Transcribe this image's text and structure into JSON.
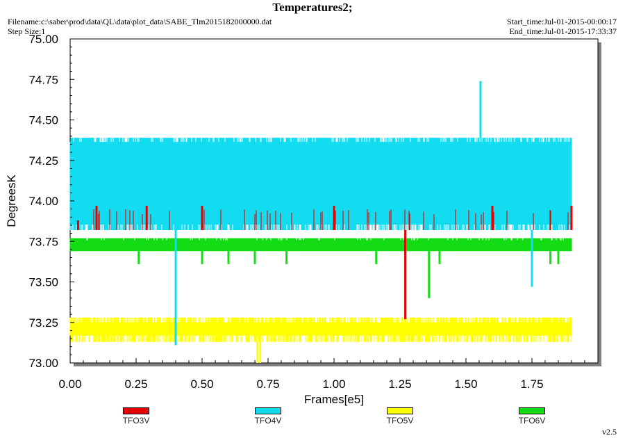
{
  "header": {
    "title": "Temperatures2;",
    "filename": "Filename:c:\\saber\\prod\\data\\QL\\data\\plot_data\\SABE_Tlm2015182000000.dat",
    "step_size": "Step Size:1",
    "start_time": "Start_time:Jul-01-2015-00:00:17",
    "end_time": "End_time:Jul-01-2015-17:33:37"
  },
  "version": "v2.5",
  "chart_data": {
    "type": "line",
    "title": "Temperatures2;",
    "xlabel": "Frames[e5]",
    "ylabel": "DegreesK",
    "xlim": [
      0,
      2.0
    ],
    "ylim": [
      73.0,
      75.0
    ],
    "x_ticks": [
      "0.00",
      "0.25",
      "0.50",
      "0.75",
      "1.00",
      "1.25",
      "1.50",
      "1.75"
    ],
    "y_ticks": [
      "73.00",
      "73.25",
      "73.50",
      "73.75",
      "74.00",
      "74.25",
      "74.50",
      "74.75",
      "75.00"
    ],
    "x_range": [
      0.0,
      1.9
    ],
    "grid": false,
    "legend_position": "bottom",
    "series": [
      {
        "name": "TFO3V",
        "color": "#e60000",
        "band": [
          73.82,
          73.95
        ],
        "spikes": [
          {
            "x": 0.03,
            "low": 73.82,
            "high": 73.88
          },
          {
            "x": 0.1,
            "low": 73.82,
            "high": 73.97
          },
          {
            "x": 0.29,
            "low": 73.82,
            "high": 73.97
          },
          {
            "x": 0.5,
            "low": 73.82,
            "high": 73.97
          },
          {
            "x": 1.0,
            "low": 73.82,
            "high": 73.97
          },
          {
            "x": 1.27,
            "low": 73.27,
            "high": 73.82
          },
          {
            "x": 1.6,
            "low": 73.82,
            "high": 73.97
          },
          {
            "x": 1.9,
            "low": 73.82,
            "high": 73.97
          }
        ]
      },
      {
        "name": "TFO4V",
        "color": "#14dcf0",
        "band": [
          73.82,
          74.39
        ],
        "spikes": [
          {
            "x": 0.4,
            "low": 73.11,
            "high": 73.82
          },
          {
            "x": 1.555,
            "low": 74.39,
            "high": 74.74
          },
          {
            "x": 1.75,
            "low": 73.47,
            "high": 73.82
          }
        ]
      },
      {
        "name": "TFO5V",
        "color": "#ffff00",
        "band": [
          73.13,
          73.28
        ],
        "spikes": [
          {
            "x": 0.71,
            "low": 73.0,
            "high": 73.13
          },
          {
            "x": 0.72,
            "low": 73.0,
            "high": 73.13
          }
        ]
      },
      {
        "name": "TFO6V",
        "color": "#14dc14",
        "band": [
          73.69,
          73.77
        ],
        "spikes": [
          {
            "x": 0.26,
            "low": 73.61,
            "high": 73.69
          },
          {
            "x": 0.5,
            "low": 73.61,
            "high": 73.69
          },
          {
            "x": 0.6,
            "low": 73.61,
            "high": 73.69
          },
          {
            "x": 0.7,
            "low": 73.61,
            "high": 73.69
          },
          {
            "x": 0.82,
            "low": 73.61,
            "high": 73.69
          },
          {
            "x": 1.16,
            "low": 73.61,
            "high": 73.69
          },
          {
            "x": 1.36,
            "low": 73.4,
            "high": 73.69
          },
          {
            "x": 1.4,
            "low": 73.61,
            "high": 73.69
          },
          {
            "x": 1.82,
            "low": 73.61,
            "high": 73.69
          },
          {
            "x": 1.85,
            "low": 73.61,
            "high": 73.69
          }
        ]
      }
    ]
  }
}
